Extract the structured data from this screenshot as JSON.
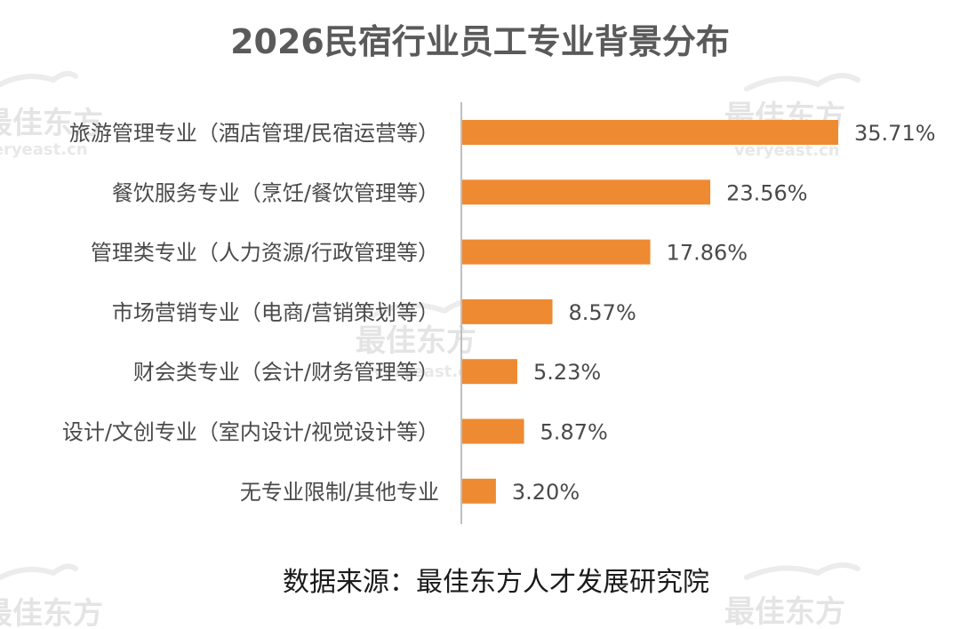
{
  "chart_data": {
    "type": "bar",
    "orientation": "horizontal",
    "title": "2026民宿行业员工专业背景分布",
    "categories": [
      "旅游管理专业（酒店管理/民宿运营等）",
      "餐饮服务专业（烹饪/餐饮管理等）",
      "管理类专业（人力资源/行政管理等）",
      "市场营销专业（电商/营销策划等）",
      "财会类专业（会计/财务管理等）",
      "设计/文创专业（室内设计/视觉设计等）",
      "无专业限制/其他专业"
    ],
    "values": [
      35.71,
      23.56,
      17.86,
      8.57,
      5.23,
      5.87,
      3.2
    ],
    "data_labels": [
      "35.71%",
      "23.56%",
      "17.86%",
      "8.57%",
      "5.23%",
      "5.87%",
      "3.20%"
    ],
    "unit": "%",
    "xlim": [
      0,
      35.71
    ],
    "grid": false,
    "legend": "none",
    "bar_color": "#ee8a32",
    "axis_color": "#bfbfbf"
  },
  "source_note": "数据来源：最佳东方人才发展研究院",
  "watermark": {
    "brand": "最佳东方",
    "domain": "veryeast.cn"
  }
}
